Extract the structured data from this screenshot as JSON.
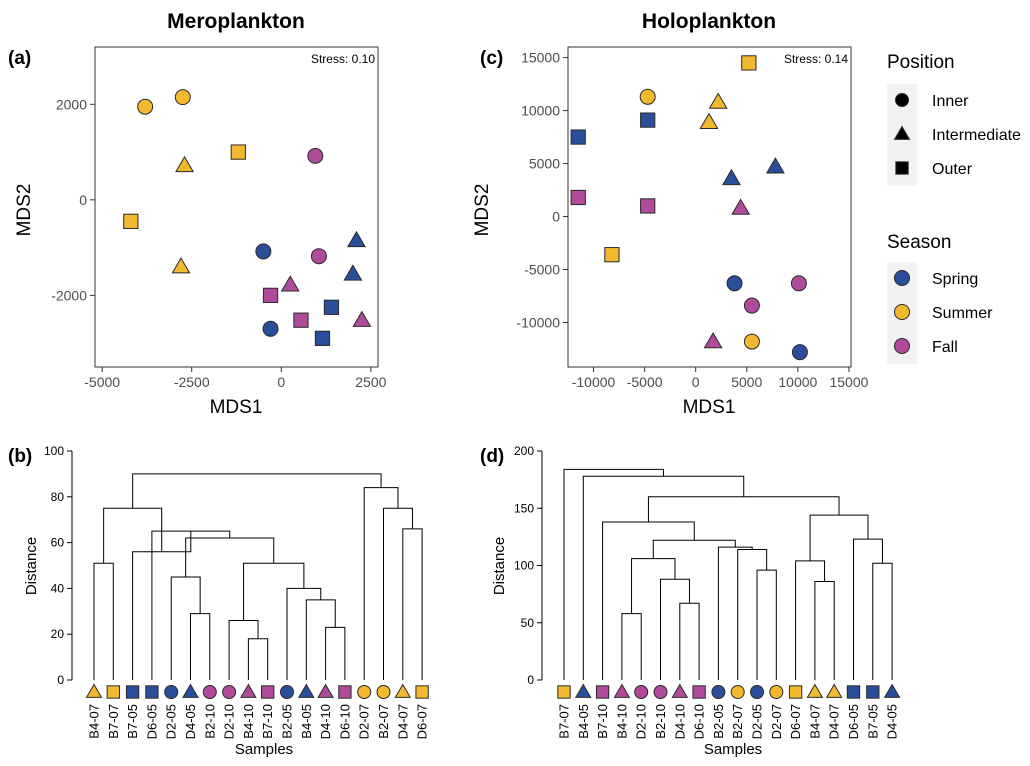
{
  "colors": {
    "Spring": "#2b4e9b",
    "Summer": "#f2b830",
    "Fall": "#b04a9a",
    "stroke": "#2a2a2a"
  },
  "legend": {
    "position_title": "Position",
    "position_items": [
      {
        "label": "Inner",
        "shape": "circle"
      },
      {
        "label": "Intermediate",
        "shape": "triangle"
      },
      {
        "label": "Outer",
        "shape": "square"
      }
    ],
    "season_title": "Season",
    "season_items": [
      {
        "label": "Spring",
        "color": "#2b4e9b"
      },
      {
        "label": "Summer",
        "color": "#f2b830"
      },
      {
        "label": "Fall",
        "color": "#b04a9a"
      }
    ]
  },
  "chart_data": [
    {
      "type": "scatter",
      "panel": "(a)",
      "title": "Meroplankton",
      "xlabel": "MDS1",
      "ylabel": "MDS2",
      "annotation": "Stress: 0.10",
      "xlim": [
        -5200,
        2700
      ],
      "ylim": [
        -3500,
        3200
      ],
      "xticks": [
        -5000,
        -2500,
        0,
        2500
      ],
      "xtick_labels": [
        "-5000",
        "-2500",
        "0",
        "2500"
      ],
      "yticks": [
        -2000,
        0,
        2000
      ],
      "ytick_labels": [
        "-2000",
        "0",
        "2000"
      ],
      "points": [
        {
          "x": -3800,
          "y": 1950,
          "season": "Summer",
          "position": "Inner"
        },
        {
          "x": -2750,
          "y": 2150,
          "season": "Summer",
          "position": "Inner"
        },
        {
          "x": -2700,
          "y": 720,
          "season": "Summer",
          "position": "Intermediate"
        },
        {
          "x": -1200,
          "y": 1000,
          "season": "Summer",
          "position": "Outer"
        },
        {
          "x": -4200,
          "y": -450,
          "season": "Summer",
          "position": "Outer"
        },
        {
          "x": -2800,
          "y": -1400,
          "season": "Summer",
          "position": "Intermediate"
        },
        {
          "x": 950,
          "y": 920,
          "season": "Fall",
          "position": "Inner"
        },
        {
          "x": 1050,
          "y": -1180,
          "season": "Fall",
          "position": "Inner"
        },
        {
          "x": -500,
          "y": -1080,
          "season": "Spring",
          "position": "Inner"
        },
        {
          "x": -300,
          "y": -2700,
          "season": "Spring",
          "position": "Inner"
        },
        {
          "x": 2100,
          "y": -850,
          "season": "Spring",
          "position": "Intermediate"
        },
        {
          "x": 2000,
          "y": -1550,
          "season": "Spring",
          "position": "Intermediate"
        },
        {
          "x": 250,
          "y": -1780,
          "season": "Fall",
          "position": "Intermediate"
        },
        {
          "x": 2250,
          "y": -2520,
          "season": "Fall",
          "position": "Intermediate"
        },
        {
          "x": -300,
          "y": -2000,
          "season": "Fall",
          "position": "Outer"
        },
        {
          "x": 550,
          "y": -2520,
          "season": "Fall",
          "position": "Outer"
        },
        {
          "x": 1400,
          "y": -2250,
          "season": "Spring",
          "position": "Outer"
        },
        {
          "x": 1150,
          "y": -2900,
          "season": "Spring",
          "position": "Outer"
        }
      ]
    },
    {
      "type": "scatter",
      "panel": "(c)",
      "title": "Holoplankton",
      "xlabel": "MDS1",
      "ylabel": "MDS2",
      "annotation": "Stress: 0.14",
      "xlim": [
        -12500,
        15200
      ],
      "ylim": [
        -14200,
        16000
      ],
      "xticks": [
        -10000,
        -5000,
        0,
        5000,
        10000,
        15000
      ],
      "xtick_labels": [
        "-10000",
        "-5000",
        "0",
        "5000",
        "10000",
        "15000"
      ],
      "yticks": [
        -10000,
        -5000,
        0,
        5000,
        10000,
        15000
      ],
      "ytick_labels": [
        "-10000",
        "-5000",
        "0",
        "5000",
        "10000",
        "15000"
      ],
      "points": [
        {
          "x": 5200,
          "y": 14500,
          "season": "Summer",
          "position": "Outer"
        },
        {
          "x": -4700,
          "y": 11300,
          "season": "Summer",
          "position": "Inner"
        },
        {
          "x": 2200,
          "y": 10800,
          "season": "Summer",
          "position": "Intermediate"
        },
        {
          "x": 1300,
          "y": 8900,
          "season": "Summer",
          "position": "Intermediate"
        },
        {
          "x": -4700,
          "y": 9100,
          "season": "Spring",
          "position": "Outer"
        },
        {
          "x": -11500,
          "y": 7500,
          "season": "Spring",
          "position": "Outer"
        },
        {
          "x": 7800,
          "y": 4700,
          "season": "Spring",
          "position": "Intermediate"
        },
        {
          "x": 3500,
          "y": 3600,
          "season": "Spring",
          "position": "Intermediate"
        },
        {
          "x": -11500,
          "y": 1800,
          "season": "Fall",
          "position": "Outer"
        },
        {
          "x": -4700,
          "y": 1000,
          "season": "Fall",
          "position": "Outer"
        },
        {
          "x": 4400,
          "y": 800,
          "season": "Fall",
          "position": "Intermediate"
        },
        {
          "x": -8200,
          "y": -3600,
          "season": "Summer",
          "position": "Outer"
        },
        {
          "x": 3800,
          "y": -6300,
          "season": "Spring",
          "position": "Inner"
        },
        {
          "x": 10100,
          "y": -6300,
          "season": "Fall",
          "position": "Inner"
        },
        {
          "x": 5500,
          "y": -8400,
          "season": "Fall",
          "position": "Inner"
        },
        {
          "x": 1700,
          "y": -11800,
          "season": "Fall",
          "position": "Intermediate"
        },
        {
          "x": 5500,
          "y": -11800,
          "season": "Summer",
          "position": "Inner"
        },
        {
          "x": 10200,
          "y": -12800,
          "season": "Spring",
          "position": "Inner"
        }
      ]
    },
    {
      "type": "dendrogram",
      "panel": "(b)",
      "xlabel": "Samples",
      "ylabel": "Distance",
      "ylim": [
        0,
        100
      ],
      "yticks": [
        0,
        20,
        40,
        60,
        80,
        100
      ],
      "ytick_labels": [
        "0",
        "20",
        "40",
        "60",
        "80",
        "100"
      ],
      "leaves": [
        {
          "label": "B4-07",
          "season": "Summer",
          "position": "Intermediate"
        },
        {
          "label": "B7-07",
          "season": "Summer",
          "position": "Outer"
        },
        {
          "label": "B7-05",
          "season": "Spring",
          "position": "Outer"
        },
        {
          "label": "D6-05",
          "season": "Spring",
          "position": "Outer"
        },
        {
          "label": "D2-05",
          "season": "Spring",
          "position": "Inner"
        },
        {
          "label": "D4-05",
          "season": "Spring",
          "position": "Intermediate"
        },
        {
          "label": "B2-10",
          "season": "Fall",
          "position": "Inner"
        },
        {
          "label": "D2-10",
          "season": "Fall",
          "position": "Inner"
        },
        {
          "label": "B4-10",
          "season": "Fall",
          "position": "Intermediate"
        },
        {
          "label": "B7-10",
          "season": "Fall",
          "position": "Outer"
        },
        {
          "label": "B2-05",
          "season": "Spring",
          "position": "Inner"
        },
        {
          "label": "B4-05",
          "season": "Spring",
          "position": "Intermediate"
        },
        {
          "label": "D4-10",
          "season": "Fall",
          "position": "Intermediate"
        },
        {
          "label": "D6-10",
          "season": "Fall",
          "position": "Outer"
        },
        {
          "label": "D2-07",
          "season": "Summer",
          "position": "Inner"
        },
        {
          "label": "B2-07",
          "season": "Summer",
          "position": "Inner"
        },
        {
          "label": "D4-07",
          "season": "Summer",
          "position": "Intermediate"
        },
        {
          "label": "D6-07",
          "season": "Summer",
          "position": "Outer"
        }
      ],
      "merges": [
        {
          "a": 8,
          "b": 9,
          "h": 18
        },
        {
          "a": 7,
          "b": "m0",
          "h": 26
        },
        {
          "a": 12,
          "b": 13,
          "h": 23
        },
        {
          "a": 11,
          "b": "m2",
          "h": 35
        },
        {
          "a": 10,
          "b": "m3",
          "h": 40
        },
        {
          "a": "m1",
          "b": "m4",
          "h": 51
        },
        {
          "a": 5,
          "b": 6,
          "h": 29
        },
        {
          "a": 4,
          "b": "m6",
          "h": 45
        },
        {
          "a": "m7",
          "b": "m5",
          "h": 62
        },
        {
          "a": 3,
          "b": "m8",
          "h": 65
        },
        {
          "a": 2,
          "b": "m9",
          "h": 56
        },
        {
          "a": 0,
          "b": 1,
          "h": 51
        },
        {
          "a": "m11",
          "b": "m10",
          "h": 75
        },
        {
          "a": 16,
          "b": 17,
          "h": 66
        },
        {
          "a": 15,
          "b": "m13",
          "h": 75
        },
        {
          "a": 14,
          "b": "m14",
          "h": 84
        },
        {
          "a": "m12",
          "b": "m15",
          "h": 90
        }
      ]
    },
    {
      "type": "dendrogram",
      "panel": "(d)",
      "xlabel": "Samples",
      "ylabel": "Distance",
      "ylim": [
        0,
        200
      ],
      "yticks": [
        0,
        50,
        100,
        150,
        200
      ],
      "ytick_labels": [
        "0",
        "50",
        "100",
        "150",
        "200"
      ],
      "leaves": [
        {
          "label": "B7-07",
          "season": "Summer",
          "position": "Outer"
        },
        {
          "label": "B4-05",
          "season": "Spring",
          "position": "Intermediate"
        },
        {
          "label": "B7-10",
          "season": "Fall",
          "position": "Outer"
        },
        {
          "label": "B4-10",
          "season": "Fall",
          "position": "Intermediate"
        },
        {
          "label": "D2-10",
          "season": "Fall",
          "position": "Inner"
        },
        {
          "label": "B2-10",
          "season": "Fall",
          "position": "Inner"
        },
        {
          "label": "D4-10",
          "season": "Fall",
          "position": "Intermediate"
        },
        {
          "label": "D6-10",
          "season": "Fall",
          "position": "Outer"
        },
        {
          "label": "B2-05",
          "season": "Spring",
          "position": "Inner"
        },
        {
          "label": "B2-07",
          "season": "Summer",
          "position": "Inner"
        },
        {
          "label": "D2-05",
          "season": "Spring",
          "position": "Inner"
        },
        {
          "label": "D2-07",
          "season": "Summer",
          "position": "Inner"
        },
        {
          "label": "D6-07",
          "season": "Summer",
          "position": "Outer"
        },
        {
          "label": "B4-07",
          "season": "Summer",
          "position": "Intermediate"
        },
        {
          "label": "D4-07",
          "season": "Summer",
          "position": "Intermediate"
        },
        {
          "label": "D6-05",
          "season": "Spring",
          "position": "Outer"
        },
        {
          "label": "B7-05",
          "season": "Spring",
          "position": "Outer"
        },
        {
          "label": "D4-05",
          "season": "Spring",
          "position": "Intermediate"
        }
      ],
      "merges": [
        {
          "a": 3,
          "b": 4,
          "h": 58
        },
        {
          "a": 6,
          "b": 7,
          "h": 67
        },
        {
          "a": 5,
          "b": "m1",
          "h": 88
        },
        {
          "a": "m0",
          "b": "m2",
          "h": 106
        },
        {
          "a": 10,
          "b": 11,
          "h": 96
        },
        {
          "a": 9,
          "b": "m4",
          "h": 114
        },
        {
          "a": 8,
          "b": "m5",
          "h": 116
        },
        {
          "a": "m3",
          "b": "m6",
          "h": 122
        },
        {
          "a": 2,
          "b": "m7",
          "h": 138
        },
        {
          "a": 13,
          "b": 14,
          "h": 86
        },
        {
          "a": 12,
          "b": "m9",
          "h": 104
        },
        {
          "a": 16,
          "b": 17,
          "h": 102
        },
        {
          "a": 15,
          "b": "m11",
          "h": 123
        },
        {
          "a": "m10",
          "b": "m12",
          "h": 144
        },
        {
          "a": "m8",
          "b": "m13",
          "h": 160
        },
        {
          "a": 1,
          "b": "m14",
          "h": 178
        },
        {
          "a": 0,
          "b": "m15",
          "h": 184
        }
      ]
    }
  ]
}
